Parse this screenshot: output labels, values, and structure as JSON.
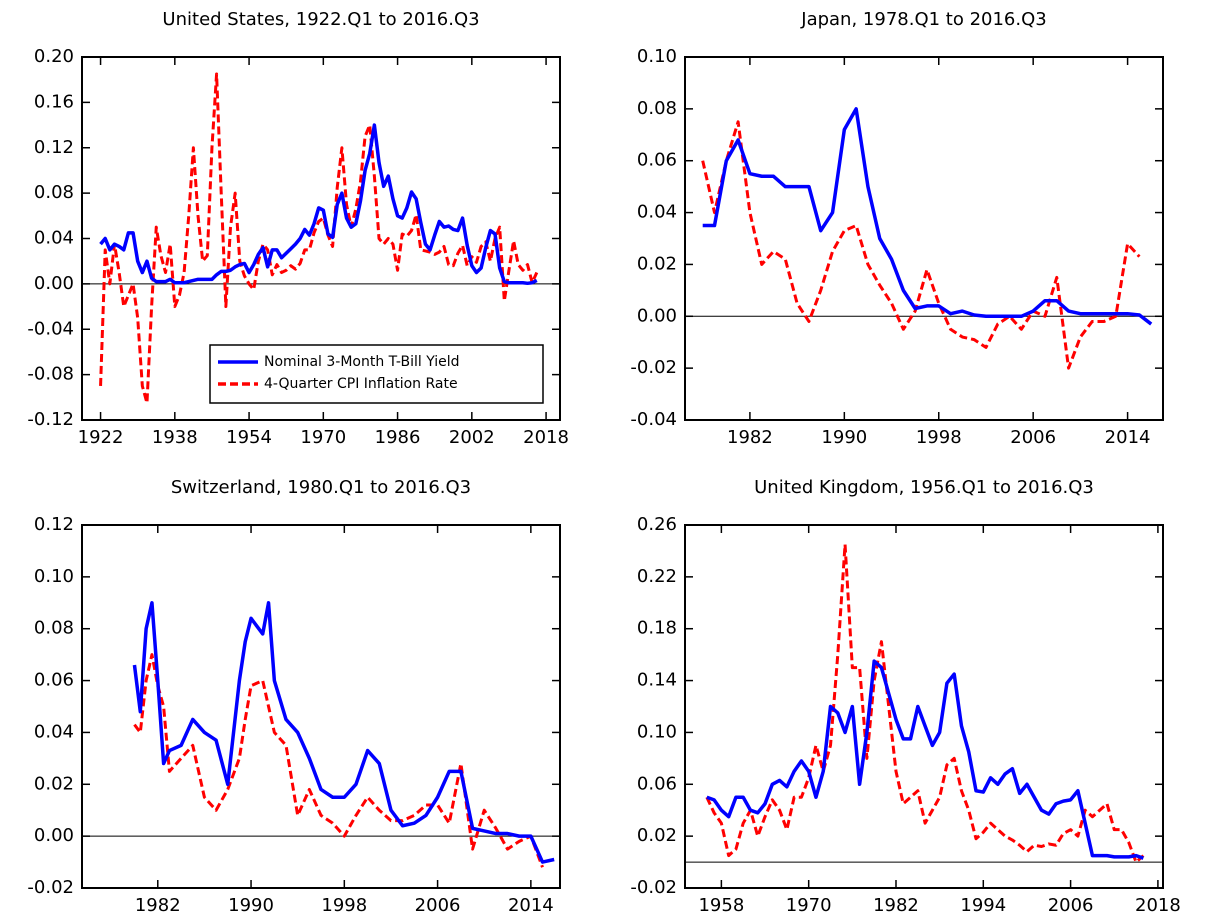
{
  "chart_data": [
    {
      "type": "line",
      "title": "United States, 1922.Q1 to 2016.Q3",
      "legend": "lower right",
      "xlim": [
        1918,
        2021
      ],
      "xticks": [
        1922,
        1938,
        1954,
        1970,
        1986,
        2002,
        2018
      ],
      "ylim": [
        -0.12,
        0.2
      ],
      "yticks": [
        {
          "value": -0.12,
          "label": "-0.12"
        },
        {
          "value": -0.08,
          "label": "-0.08"
        },
        {
          "value": -0.04,
          "label": "-0.04"
        },
        {
          "value": 0,
          "label": "0.00"
        },
        {
          "value": 0.04,
          "label": "0.04"
        },
        {
          "value": 0.08,
          "label": "0.08"
        },
        {
          "value": 0.12,
          "label": "0.12"
        },
        {
          "value": 0.16,
          "label": "0.16"
        },
        {
          "value": 0.2,
          "label": "0.20"
        }
      ],
      "x": [
        1922,
        1923,
        1924,
        1925,
        1926,
        1927,
        1928,
        1929,
        1930,
        1931,
        1932,
        1933,
        1934,
        1935,
        1936,
        1937,
        1938,
        1939,
        1940,
        1941,
        1942,
        1943,
        1944,
        1945,
        1946,
        1947,
        1948,
        1949,
        1950,
        1951,
        1952,
        1953,
        1954,
        1955,
        1956,
        1957,
        1958,
        1959,
        1960,
        1961,
        1962,
        1963,
        1964,
        1965,
        1966,
        1967,
        1968,
        1969,
        1970,
        1971,
        1972,
        1973,
        1974,
        1975,
        1976,
        1977,
        1978,
        1979,
        1980,
        1981,
        1982,
        1983,
        1984,
        1985,
        1986,
        1987,
        1988,
        1989,
        1990,
        1991,
        1992,
        1993,
        1994,
        1995,
        1996,
        1997,
        1998,
        1999,
        2000,
        2001,
        2002,
        2003,
        2004,
        2005,
        2006,
        2007,
        2008,
        2009,
        2010,
        2011,
        2012,
        2013,
        2014,
        2015,
        2016
      ],
      "series": [
        {
          "name": "Nominal 3-Month T-Bill Yield",
          "color": "#0000ff",
          "linestyle": "solid",
          "values": [
            0.035,
            0.04,
            0.03,
            0.035,
            0.033,
            0.03,
            0.045,
            0.045,
            0.02,
            0.01,
            0.02,
            0.005,
            0.002,
            0.002,
            0.002,
            0.004,
            0.001,
            0.001,
            0.001,
            0.002,
            0.003,
            0.004,
            0.004,
            0.004,
            0.004,
            0.008,
            0.011,
            0.011,
            0.012,
            0.015,
            0.017,
            0.018,
            0.01,
            0.017,
            0.026,
            0.032,
            0.015,
            0.03,
            0.03,
            0.023,
            0.027,
            0.031,
            0.035,
            0.04,
            0.048,
            0.043,
            0.053,
            0.067,
            0.065,
            0.044,
            0.041,
            0.07,
            0.08,
            0.058,
            0.05,
            0.053,
            0.073,
            0.1,
            0.115,
            0.14,
            0.107,
            0.086,
            0.095,
            0.075,
            0.06,
            0.058,
            0.067,
            0.081,
            0.075,
            0.054,
            0.035,
            0.03,
            0.043,
            0.055,
            0.05,
            0.051,
            0.048,
            0.047,
            0.058,
            0.034,
            0.016,
            0.01,
            0.014,
            0.032,
            0.047,
            0.044,
            0.014,
            0.002,
            0.001,
            0.001,
            0.001,
            0.001,
            0.0005,
            0.001,
            0.003
          ]
        },
        {
          "name": "4-Quarter CPI Inflation Rate",
          "color": "#ff0000",
          "linestyle": "dashed",
          "values": [
            -0.09,
            0.03,
            0.0,
            0.035,
            0.01,
            -0.02,
            -0.01,
            0.0,
            -0.03,
            -0.09,
            -0.105,
            -0.02,
            0.05,
            0.025,
            0.01,
            0.035,
            -0.02,
            -0.01,
            0.01,
            0.06,
            0.12,
            0.06,
            0.02,
            0.025,
            0.12,
            0.185,
            0.08,
            -0.02,
            0.05,
            0.08,
            0.02,
            0.007,
            0.0,
            -0.005,
            0.02,
            0.035,
            0.03,
            0.008,
            0.017,
            0.01,
            0.012,
            0.016,
            0.013,
            0.018,
            0.03,
            0.03,
            0.045,
            0.055,
            0.058,
            0.043,
            0.033,
            0.085,
            0.12,
            0.07,
            0.05,
            0.066,
            0.09,
            0.13,
            0.14,
            0.095,
            0.04,
            0.035,
            0.04,
            0.035,
            0.012,
            0.044,
            0.042,
            0.047,
            0.061,
            0.03,
            0.029,
            0.028,
            0.026,
            0.028,
            0.033,
            0.017,
            0.016,
            0.027,
            0.034,
            0.016,
            0.024,
            0.019,
            0.033,
            0.037,
            0.02,
            0.04,
            0.05,
            -0.015,
            0.012,
            0.038,
            0.017,
            0.012,
            0.017,
            0.001,
            0.01
          ]
        }
      ]
    },
    {
      "type": "line",
      "title": "Japan, 1978.Q1 to 2016.Q3",
      "xlim": [
        1976.5,
        2017
      ],
      "xticks": [
        1982,
        1990,
        1998,
        2006,
        2014
      ],
      "ylim": [
        -0.04,
        0.1
      ],
      "yticks": [
        {
          "value": -0.04,
          "label": "-0.04"
        },
        {
          "value": -0.02,
          "label": "-0.02"
        },
        {
          "value": 0,
          "label": "0.00"
        },
        {
          "value": 0.02,
          "label": "0.02"
        },
        {
          "value": 0.04,
          "label": "0.04"
        },
        {
          "value": 0.06,
          "label": "0.06"
        },
        {
          "value": 0.08,
          "label": "0.08"
        },
        {
          "value": 0.1,
          "label": "0.10"
        }
      ],
      "x": [
        1978,
        1979,
        1980,
        1981,
        1982,
        1983,
        1984,
        1985,
        1986,
        1987,
        1988,
        1989,
        1990,
        1991,
        1992,
        1993,
        1994,
        1995,
        1996,
        1997,
        1998,
        1999,
        2000,
        2001,
        2002,
        2003,
        2004,
        2005,
        2006,
        2007,
        2008,
        2009,
        2010,
        2011,
        2012,
        2013,
        2014,
        2015,
        2016
      ],
      "series": [
        {
          "color": "#0000ff",
          "linestyle": "solid",
          "values": [
            0.035,
            0.035,
            0.06,
            0.068,
            0.055,
            0.054,
            0.054,
            0.05,
            0.05,
            0.05,
            0.033,
            0.04,
            0.072,
            0.08,
            0.05,
            0.03,
            0.022,
            0.01,
            0.003,
            0.004,
            0.004,
            0.001,
            0.002,
            0.0005,
            0.0,
            0.0,
            0.0,
            0.0,
            0.002,
            0.006,
            0.006,
            0.002,
            0.001,
            0.001,
            0.001,
            0.001,
            0.001,
            0.0005,
            -0.003
          ]
        },
        {
          "color": "#ff0000",
          "linestyle": "dashed",
          "values": [
            0.06,
            0.04,
            0.06,
            0.075,
            0.04,
            0.02,
            0.025,
            0.022,
            0.005,
            -0.002,
            0.01,
            0.025,
            0.033,
            0.035,
            0.02,
            0.012,
            0.005,
            -0.005,
            0.002,
            0.018,
            0.005,
            -0.005,
            -0.008,
            -0.009,
            -0.012,
            -0.003,
            0.0,
            -0.005,
            0.002,
            0.0,
            0.015,
            -0.02,
            -0.008,
            -0.002,
            -0.002,
            0.0,
            0.028,
            0.023,
            null
          ]
        }
      ]
    },
    {
      "type": "line",
      "title": "Switzerland, 1980.Q1 to 2016.Q3",
      "xlim": [
        1975.5,
        2016.5
      ],
      "xticks": [
        1982,
        1990,
        1998,
        2006,
        2014
      ],
      "ylim": [
        -0.02,
        0.12
      ],
      "yticks": [
        {
          "value": -0.02,
          "label": "-0.02"
        },
        {
          "value": 0,
          "label": "0.00"
        },
        {
          "value": 0.02,
          "label": "0.02"
        },
        {
          "value": 0.04,
          "label": "0.04"
        },
        {
          "value": 0.06,
          "label": "0.06"
        },
        {
          "value": 0.08,
          "label": "0.08"
        },
        {
          "value": 0.1,
          "label": "0.10"
        },
        {
          "value": 0.12,
          "label": "0.12"
        }
      ],
      "x": [
        1980,
        1980.5,
        1981,
        1981.5,
        1982,
        1982.5,
        1983,
        1984,
        1985,
        1986,
        1987,
        1988,
        1989,
        1989.5,
        1990,
        1991,
        1991.5,
        1992,
        1993,
        1994,
        1995,
        1996,
        1997,
        1998,
        1999,
        2000,
        2001,
        2002,
        2003,
        2004,
        2005,
        2006,
        2007,
        2008,
        2009,
        2010,
        2011,
        2012,
        2013,
        2014,
        2015,
        2016
      ],
      "series": [
        {
          "color": "#0000ff",
          "linestyle": "solid",
          "values": [
            0.066,
            0.048,
            0.08,
            0.09,
            0.06,
            0.028,
            0.033,
            0.035,
            0.045,
            0.04,
            0.037,
            0.02,
            0.06,
            0.075,
            0.084,
            0.078,
            0.09,
            0.06,
            0.045,
            0.04,
            0.03,
            0.018,
            0.015,
            0.015,
            0.02,
            0.033,
            0.028,
            0.01,
            0.004,
            0.005,
            0.008,
            0.015,
            0.025,
            0.025,
            0.003,
            0.002,
            0.001,
            0.001,
            0.0,
            0.0,
            -0.01,
            -0.009
          ]
        },
        {
          "color": "#ff0000",
          "linestyle": "dashed",
          "values": [
            0.043,
            0.04,
            0.06,
            0.07,
            0.058,
            0.05,
            0.025,
            0.03,
            0.035,
            0.015,
            0.01,
            0.018,
            0.03,
            0.045,
            0.058,
            0.06,
            0.05,
            0.04,
            0.035,
            0.008,
            0.018,
            0.008,
            0.005,
            0.0,
            0.008,
            0.015,
            0.01,
            0.006,
            0.006,
            0.008,
            0.012,
            0.012,
            0.005,
            0.028,
            -0.005,
            0.01,
            0.003,
            -0.005,
            -0.002,
            0.0,
            -0.012,
            null
          ]
        }
      ]
    },
    {
      "type": "line",
      "title": "United Kingdom, 1956.Q1 to 2016.Q3",
      "xlim": [
        1953,
        2018.7
      ],
      "xticks": [
        1958,
        1970,
        1982,
        1994,
        2006,
        2018
      ],
      "ylim": [
        -0.02,
        0.26
      ],
      "yticks": [
        {
          "value": -0.02,
          "label": "-0.02"
        },
        {
          "value": 0.02,
          "label": "0.02"
        },
        {
          "value": 0.06,
          "label": "0.06"
        },
        {
          "value": 0.1,
          "label": "0.10"
        },
        {
          "value": 0.14,
          "label": "0.14"
        },
        {
          "value": 0.18,
          "label": "0.18"
        },
        {
          "value": 0.22,
          "label": "0.22"
        },
        {
          "value": 0.26,
          "label": "0.26"
        }
      ],
      "x": [
        1956,
        1957,
        1958,
        1959,
        1960,
        1961,
        1962,
        1963,
        1964,
        1965,
        1966,
        1967,
        1968,
        1969,
        1970,
        1971,
        1972,
        1973,
        1974,
        1975,
        1976,
        1977,
        1978,
        1979,
        1980,
        1981,
        1982,
        1983,
        1984,
        1985,
        1986,
        1987,
        1988,
        1989,
        1990,
        1991,
        1992,
        1993,
        1994,
        1995,
        1996,
        1997,
        1998,
        1999,
        2000,
        2001,
        2002,
        2003,
        2004,
        2005,
        2006,
        2007,
        2008,
        2009,
        2010,
        2011,
        2012,
        2013,
        2014,
        2015,
        2016
      ],
      "series": [
        {
          "color": "#0000ff",
          "linestyle": "solid",
          "values": [
            0.05,
            0.048,
            0.04,
            0.035,
            0.05,
            0.05,
            0.04,
            0.038,
            0.045,
            0.06,
            0.063,
            0.058,
            0.07,
            0.078,
            0.07,
            0.05,
            0.07,
            0.12,
            0.115,
            0.1,
            0.12,
            0.06,
            0.1,
            0.155,
            0.15,
            0.13,
            0.11,
            0.095,
            0.095,
            0.12,
            0.105,
            0.09,
            0.1,
            0.138,
            0.145,
            0.105,
            0.085,
            0.055,
            0.054,
            0.065,
            0.06,
            0.068,
            0.072,
            0.053,
            0.06,
            0.05,
            0.04,
            0.037,
            0.045,
            0.047,
            0.048,
            0.055,
            0.03,
            0.005,
            0.005,
            0.005,
            0.004,
            0.004,
            0.004,
            0.005,
            0.003
          ]
        },
        {
          "color": "#ff0000",
          "linestyle": "dashed",
          "values": [
            0.05,
            0.038,
            0.03,
            0.005,
            0.01,
            0.03,
            0.04,
            0.02,
            0.035,
            0.048,
            0.04,
            0.025,
            0.05,
            0.05,
            0.065,
            0.09,
            0.07,
            0.09,
            0.16,
            0.245,
            0.15,
            0.15,
            0.08,
            0.14,
            0.17,
            0.12,
            0.07,
            0.045,
            0.05,
            0.055,
            0.03,
            0.04,
            0.05,
            0.075,
            0.08,
            0.055,
            0.04,
            0.018,
            0.023,
            0.03,
            0.025,
            0.02,
            0.017,
            0.013,
            0.008,
            0.013,
            0.012,
            0.014,
            0.013,
            0.022,
            0.025,
            0.02,
            0.04,
            0.035,
            0.04,
            0.045,
            0.025,
            0.025,
            0.015,
            0.0,
            0.005
          ]
        }
      ]
    }
  ]
}
